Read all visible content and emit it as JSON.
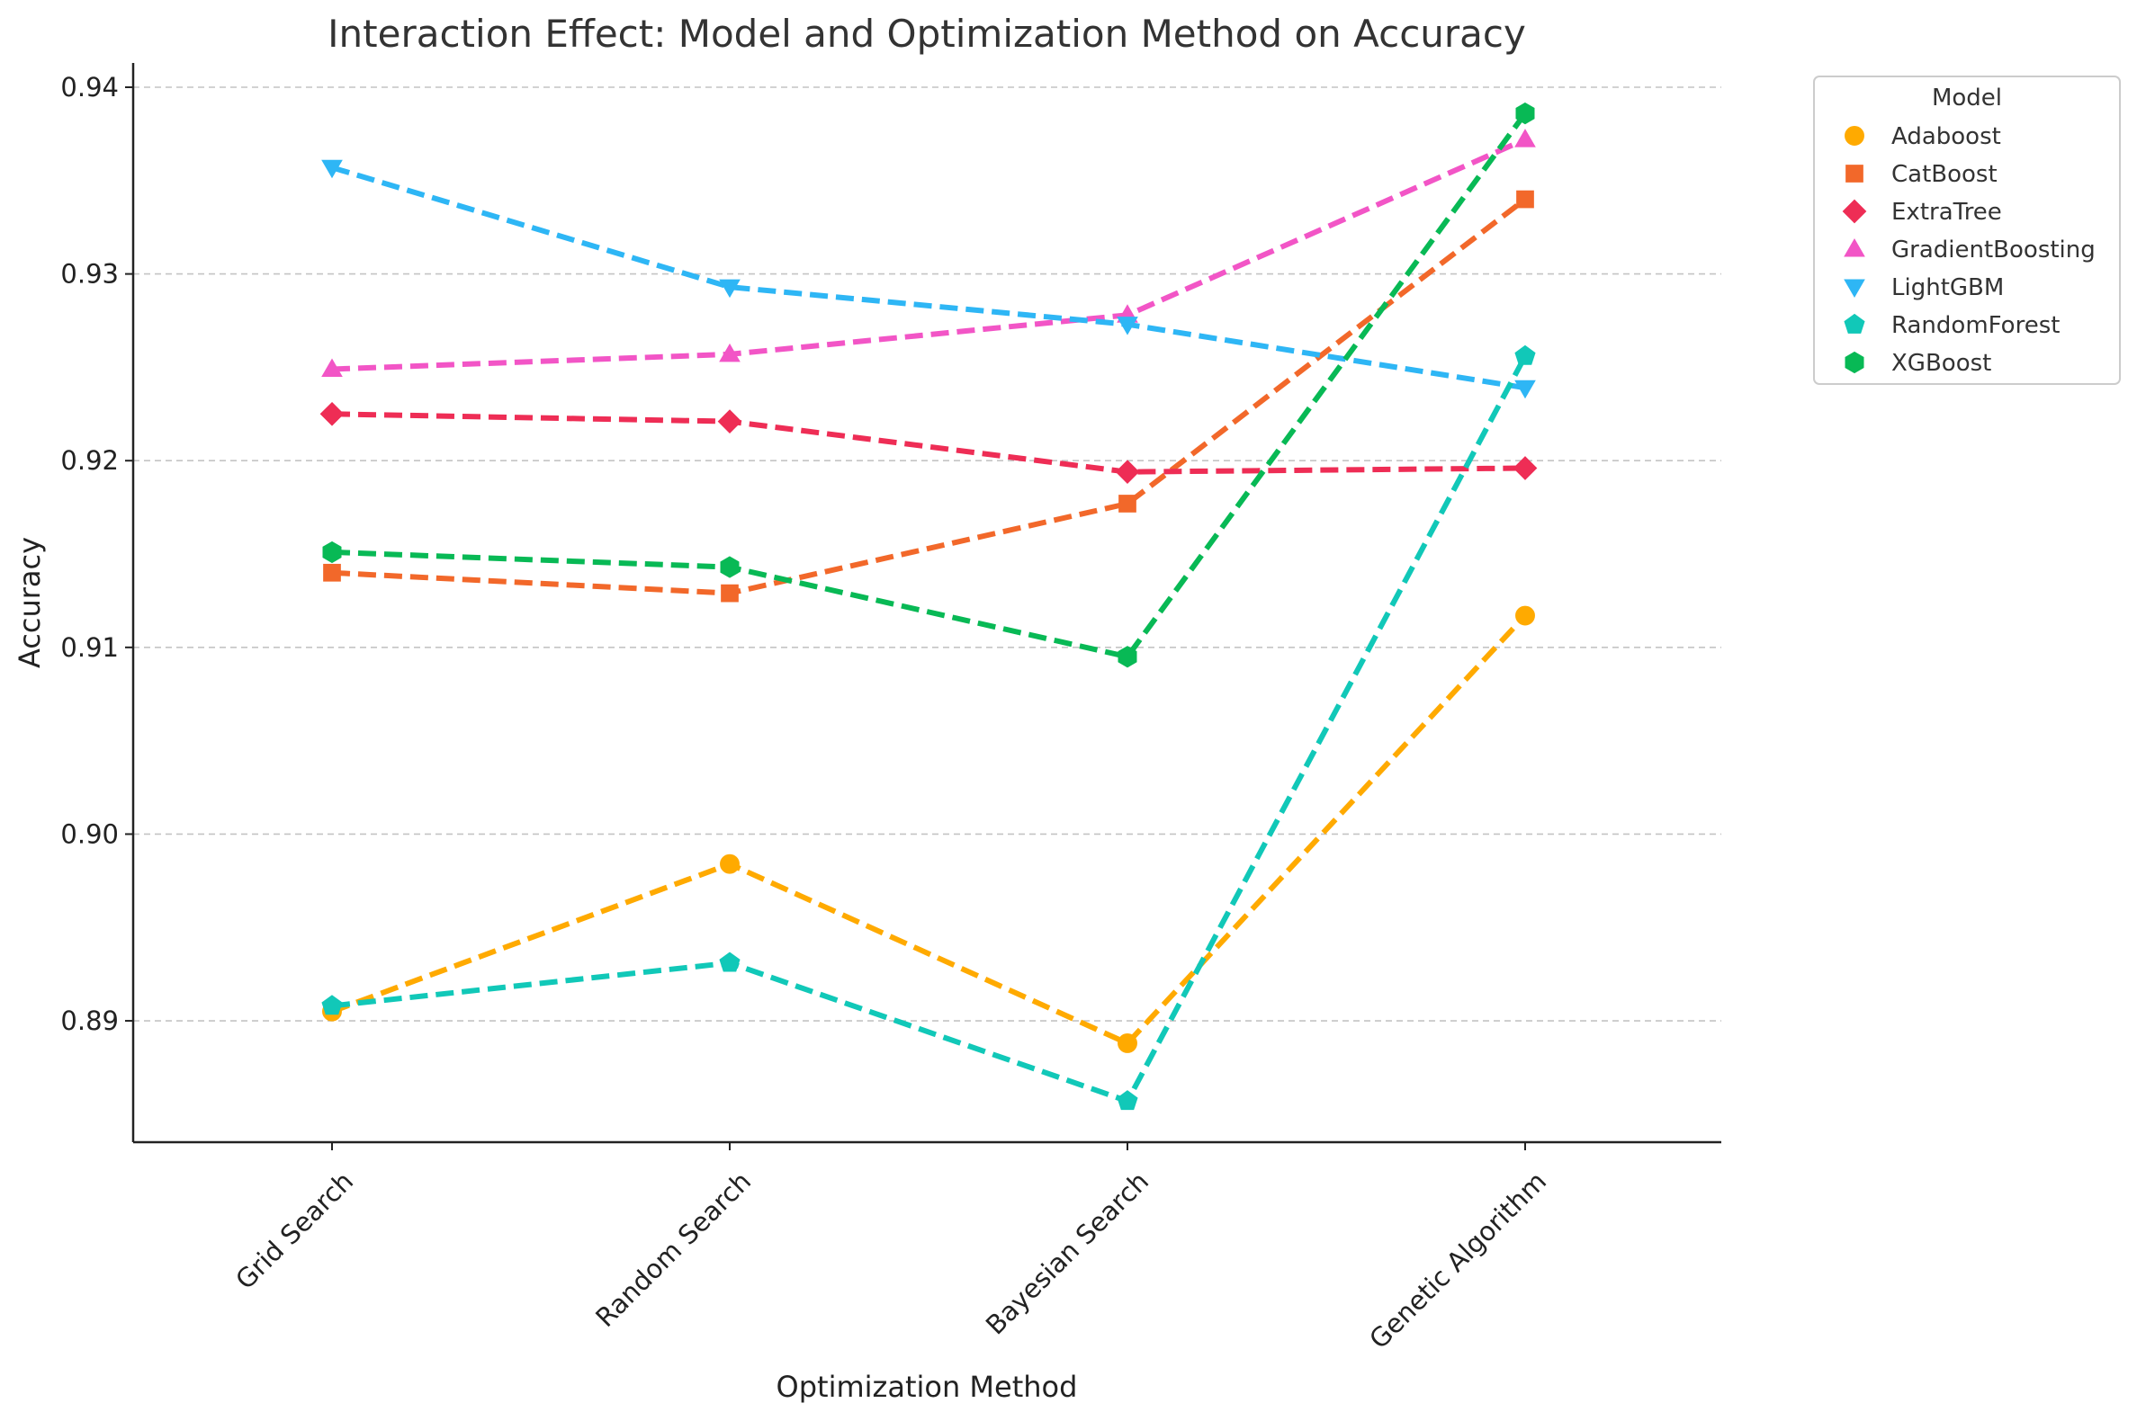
{
  "chart_data": {
    "type": "line",
    "title": "Interaction Effect: Model and Optimization Method on Accuracy",
    "xlabel": "Optimization Method",
    "ylabel": "Accuracy",
    "categories": [
      "Grid Search",
      "Random Search",
      "Bayesian Search",
      "Genetic Algorithm"
    ],
    "ylim": [
      0.8835,
      0.9413
    ],
    "yticks": [
      0.89,
      0.9,
      0.91,
      0.92,
      0.93,
      0.94
    ],
    "ytick_labels": [
      "0.89",
      "0.90",
      "0.91",
      "0.92",
      "0.93",
      "0.94"
    ],
    "grid": "horizontal dashed",
    "legend": {
      "title": "Model",
      "placement": "outside-top-right"
    },
    "series": [
      {
        "name": "Adaboost",
        "color": "#FFAA00",
        "marker": "circle",
        "values": [
          0.8905,
          0.8984,
          0.8888,
          0.9117
        ]
      },
      {
        "name": "CatBoost",
        "color": "#F2682A",
        "marker": "square",
        "values": [
          0.914,
          0.9129,
          0.9177,
          0.934
        ]
      },
      {
        "name": "ExtraTree",
        "color": "#EE2D55",
        "marker": "diamond",
        "values": [
          0.9225,
          0.9221,
          0.9194,
          0.9196
        ]
      },
      {
        "name": "GradientBoosting",
        "color": "#F255C6",
        "marker": "triangle-up",
        "values": [
          0.9249,
          0.9257,
          0.9278,
          0.9372
        ]
      },
      {
        "name": "LightGBM",
        "color": "#2EB6F5",
        "marker": "triangle-down",
        "values": [
          0.9357,
          0.9293,
          0.9273,
          0.9239
        ]
      },
      {
        "name": "RandomForest",
        "color": "#11C8B8",
        "marker": "pentagon",
        "values": [
          0.8908,
          0.8931,
          0.8857,
          0.9256
        ]
      },
      {
        "name": "XGBoost",
        "color": "#08B955",
        "marker": "hexagon",
        "values": [
          0.9151,
          0.9143,
          0.9095,
          0.9386
        ]
      }
    ]
  }
}
